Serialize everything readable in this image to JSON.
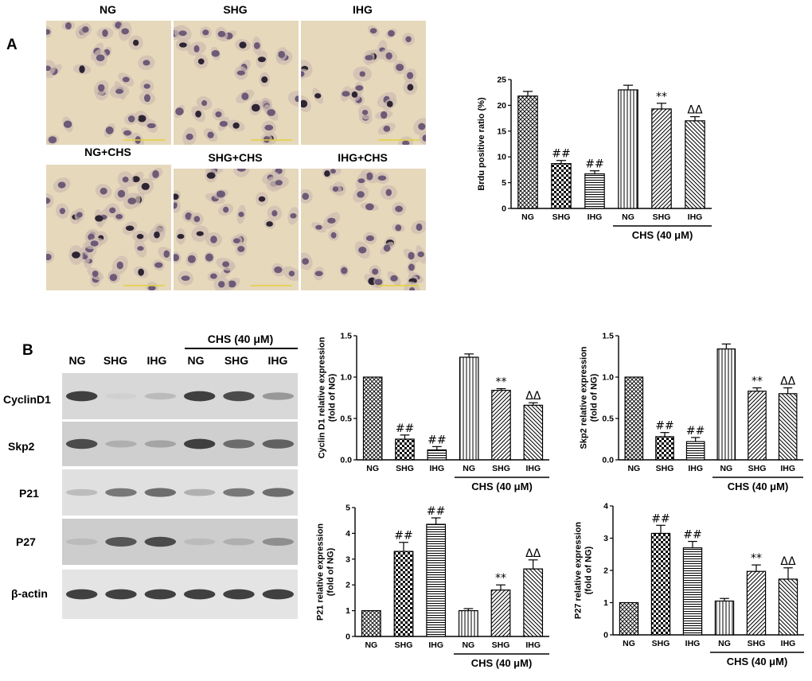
{
  "panel_a_label": "A",
  "panel_b_label": "B",
  "micrographs": [
    {
      "label": "NG"
    },
    {
      "label": "SHG"
    },
    {
      "label": "IHG"
    },
    {
      "label": "NG+CHS"
    },
    {
      "label": "SHG+CHS"
    },
    {
      "label": "IHG+CHS"
    }
  ],
  "blot": {
    "group_label": "CHS (40 μM)",
    "lanes": [
      "NG",
      "SHG",
      "IHG",
      "NG",
      "SHG",
      "IHG"
    ],
    "rows": [
      {
        "name": "CyclinD1",
        "intensity": [
          0.85,
          0.2,
          0.3,
          0.85,
          0.8,
          0.45
        ]
      },
      {
        "name": "Skp2",
        "intensity": [
          0.8,
          0.35,
          0.4,
          0.85,
          0.65,
          0.7
        ]
      },
      {
        "name": "P21",
        "intensity": [
          0.3,
          0.6,
          0.65,
          0.35,
          0.6,
          0.65
        ]
      },
      {
        "name": "P27",
        "intensity": [
          0.3,
          0.75,
          0.8,
          0.3,
          0.35,
          0.5
        ]
      },
      {
        "name": "β-actin",
        "intensity": [
          0.85,
          0.85,
          0.85,
          0.85,
          0.85,
          0.85
        ]
      }
    ]
  },
  "colors": {
    "bar_fill": "#ffffff",
    "bar_stroke": "#000000",
    "text": "#000000"
  },
  "chart_data": [
    {
      "type": "bar",
      "id": "brdu",
      "ylabel": "Brdu positive ratio (%)",
      "ylim": [
        0,
        25
      ],
      "yticks": [
        0,
        5,
        10,
        15,
        20,
        25
      ],
      "categories": [
        "NG",
        "SHG",
        "IHG",
        "NG",
        "SHG",
        "IHG"
      ],
      "values": [
        21.8,
        8.7,
        6.7,
        23.0,
        19.3,
        17.0
      ],
      "errors": [
        0.9,
        0.6,
        0.6,
        0.9,
        1.1,
        0.8
      ],
      "annotations": [
        "",
        "##",
        "##",
        "",
        "**",
        "ΔΔ"
      ],
      "patterns": [
        "crosshatch",
        "checker",
        "hlines",
        "vlines",
        "diag",
        "diag2"
      ],
      "group_label": "CHS (40 μM)",
      "group_start": 3
    },
    {
      "type": "bar",
      "id": "cyclind1",
      "ylabel": "Cyclin D1 relative expression (fold of NG)",
      "ylim": [
        0,
        1.5
      ],
      "yticks": [
        0.0,
        0.5,
        1.0,
        1.5
      ],
      "categories": [
        "NG",
        "SHG",
        "IHG",
        "NG",
        "SHG",
        "IHG"
      ],
      "values": [
        1.0,
        0.25,
        0.12,
        1.24,
        0.84,
        0.66
      ],
      "errors": [
        0.0,
        0.05,
        0.04,
        0.04,
        0.02,
        0.03
      ],
      "annotations": [
        "",
        "##",
        "##",
        "",
        "**",
        "ΔΔ"
      ],
      "patterns": [
        "crosshatch",
        "checker",
        "hlines",
        "vlines",
        "diag",
        "diag2"
      ],
      "group_label": "CHS (40 μM)",
      "group_start": 3
    },
    {
      "type": "bar",
      "id": "skp2",
      "ylabel": "Skp2 relative expression (fold of NG)",
      "ylim": [
        0,
        1.5
      ],
      "yticks": [
        0.0,
        0.5,
        1.0,
        1.5
      ],
      "categories": [
        "NG",
        "SHG",
        "IHG",
        "NG",
        "SHG",
        "IHG"
      ],
      "values": [
        1.0,
        0.28,
        0.22,
        1.34,
        0.83,
        0.8
      ],
      "errors": [
        0.0,
        0.05,
        0.05,
        0.06,
        0.04,
        0.07
      ],
      "annotations": [
        "",
        "##",
        "##",
        "",
        "**",
        "ΔΔ"
      ],
      "patterns": [
        "crosshatch",
        "checker",
        "hlines",
        "vlines",
        "diag",
        "diag2"
      ],
      "group_label": "CHS (40 μM)",
      "group_start": 3
    },
    {
      "type": "bar",
      "id": "p21",
      "ylabel": "P21 relative expression (fold of NG)",
      "ylim": [
        0,
        5
      ],
      "yticks": [
        0,
        1,
        2,
        3,
        4,
        5
      ],
      "categories": [
        "NG",
        "SHG",
        "IHG",
        "NG",
        "SHG",
        "IHG"
      ],
      "values": [
        1.0,
        3.3,
        4.35,
        1.0,
        1.8,
        2.62
      ],
      "errors": [
        0.0,
        0.35,
        0.25,
        0.08,
        0.2,
        0.35
      ],
      "annotations": [
        "",
        "##",
        "##",
        "",
        "**",
        "ΔΔ"
      ],
      "patterns": [
        "crosshatch",
        "checker",
        "hlines",
        "vlines",
        "diag",
        "diag2"
      ],
      "group_label": "CHS (40 μM)",
      "group_start": 3
    },
    {
      "type": "bar",
      "id": "p27",
      "ylabel": "P27 relative expression (fold of NG)",
      "ylim": [
        0,
        4
      ],
      "yticks": [
        0,
        1,
        2,
        3,
        4
      ],
      "categories": [
        "NG",
        "SHG",
        "IHG",
        "NG",
        "SHG",
        "IHG"
      ],
      "values": [
        1.0,
        3.15,
        2.7,
        1.05,
        1.97,
        1.73
      ],
      "errors": [
        0.0,
        0.25,
        0.2,
        0.08,
        0.2,
        0.35
      ],
      "annotations": [
        "",
        "##",
        "##",
        "",
        "**",
        "ΔΔ"
      ],
      "patterns": [
        "crosshatch",
        "checker",
        "hlines",
        "vlines",
        "diag",
        "diag2"
      ],
      "group_label": "CHS (40 μM)",
      "group_start": 3
    }
  ]
}
